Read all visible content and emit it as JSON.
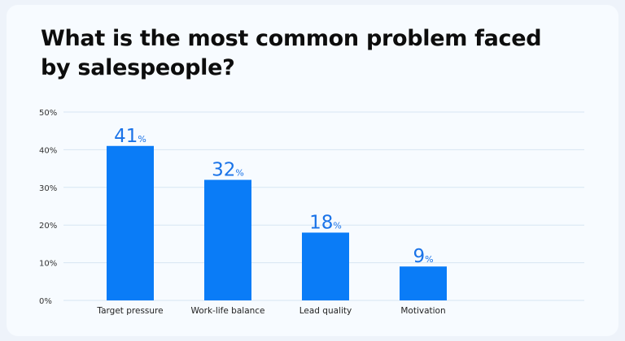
{
  "chart_data": {
    "type": "bar",
    "title": "What is the most common problem faced by salespeople?",
    "categories": [
      "Target pressure",
      "Work-life balance",
      "Lead quality",
      "Motivation"
    ],
    "values": [
      41,
      32,
      18,
      9
    ],
    "value_labels": [
      "41",
      "32",
      "18",
      "9"
    ],
    "value_suffix": "%",
    "yticks": [
      "0%",
      "10%",
      "20%",
      "30%",
      "40%",
      "50%"
    ],
    "ylim": [
      0,
      50
    ],
    "xlabel": "",
    "ylabel": "",
    "grid": true,
    "bar_color": "#0a7cf7",
    "label_color": "#1a73e8",
    "grid_color": "#d7e6f3"
  }
}
